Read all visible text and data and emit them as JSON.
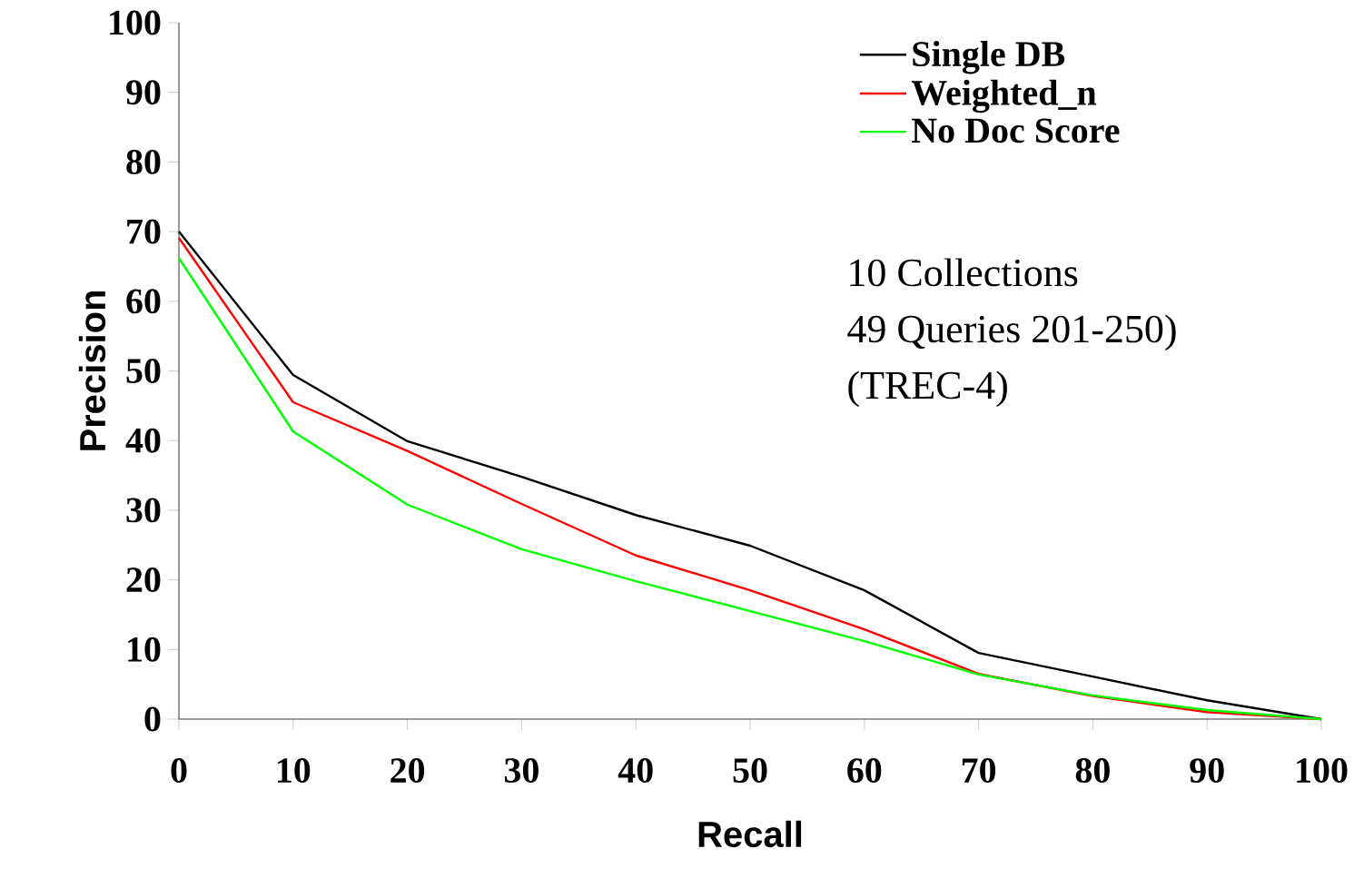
{
  "chart_data": {
    "type": "line",
    "xlabel": "Recall",
    "ylabel": "Precision",
    "x": [
      0,
      10,
      20,
      30,
      40,
      50,
      60,
      70,
      80,
      90,
      100
    ],
    "series": [
      {
        "name": "Single DB",
        "color": "#000000",
        "values": [
          70,
          49.4,
          39.9,
          34.8,
          29.3,
          24.9,
          18.5,
          9.5,
          6.1,
          2.7,
          0
        ]
      },
      {
        "name": "Weighted_n",
        "color": "#ff0000",
        "values": [
          69.1,
          45.5,
          38.5,
          30.9,
          23.5,
          18.5,
          12.9,
          6.5,
          3.3,
          1.0,
          0
        ]
      },
      {
        "name": "No Doc Score",
        "color": "#00ff00",
        "values": [
          66.2,
          41.3,
          30.8,
          24.4,
          19.8,
          15.5,
          11.2,
          6.4,
          3.4,
          1.3,
          0
        ]
      }
    ],
    "xlim": [
      0,
      100
    ],
    "ylim": [
      0,
      100
    ],
    "xticks": [
      0,
      10,
      20,
      30,
      40,
      50,
      60,
      70,
      80,
      90,
      100
    ],
    "yticks": [
      0,
      10,
      20,
      30,
      40,
      50,
      60,
      70,
      80,
      90,
      100
    ],
    "grid": false,
    "legend": "top right",
    "annotations": [
      "10 Collections",
      "49 Queries 201-250)",
      "(TREC-4)"
    ]
  }
}
